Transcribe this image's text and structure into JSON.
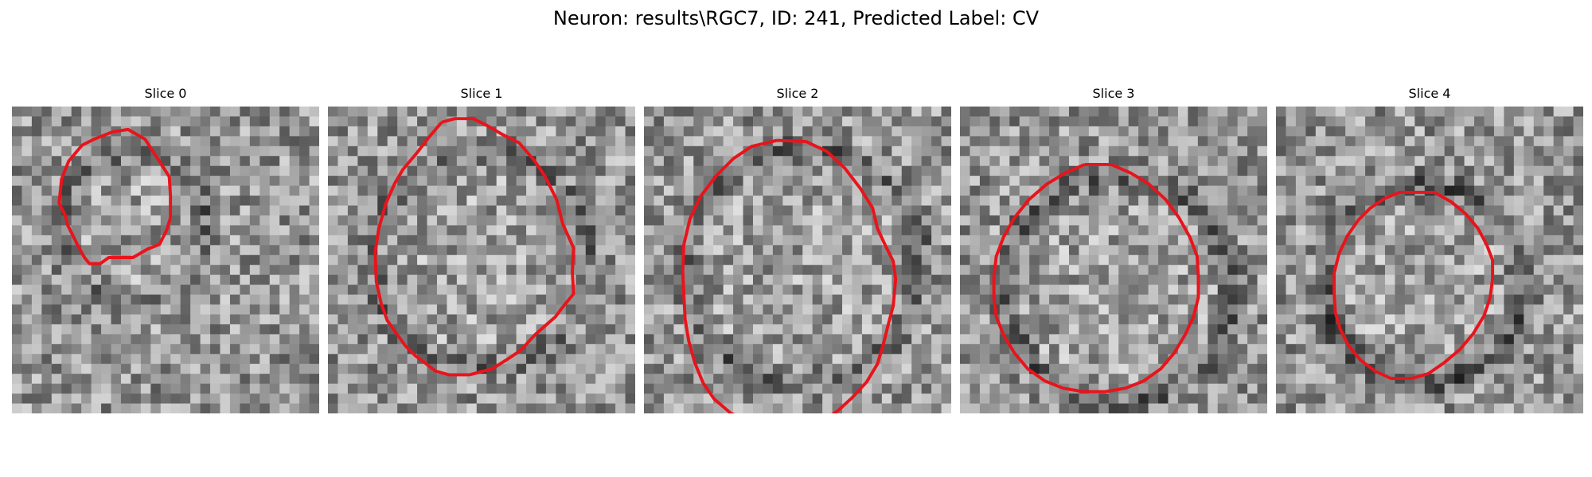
{
  "figure": {
    "title": "Neuron: results\\RGC7, ID: 241, Predicted Label: CV"
  },
  "panels": [
    {
      "title": "Slice 0"
    },
    {
      "title": "Slice 1"
    },
    {
      "title": "Slice 2"
    },
    {
      "title": "Slice 3"
    },
    {
      "title": "Slice 4"
    }
  ],
  "colors": {
    "contour": "#e8141c",
    "background": "#ffffff"
  }
}
